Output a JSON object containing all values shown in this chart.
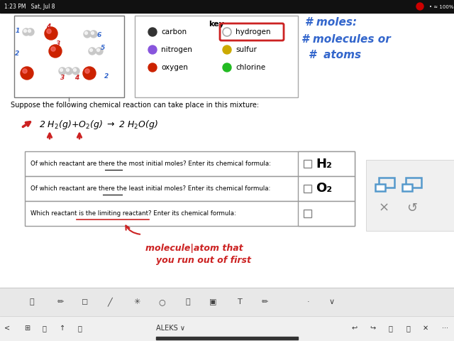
{
  "bg_color": "#ffffff",
  "status_bar_bg": "#111111",
  "status_time": "1:23 PM   Sat, Jul 8",
  "status_right": "•≈ 100%",
  "key_title": "key",
  "key_data": [
    {
      "label": "carbon",
      "color": "#333333",
      "filled": true,
      "col": 0
    },
    {
      "label": "hydrogen",
      "color": "#d0d0d0",
      "filled": false,
      "col": 1,
      "boxed": true
    },
    {
      "label": "nitrogen",
      "color": "#8855dd",
      "filled": true,
      "col": 0
    },
    {
      "label": "sulfur",
      "color": "#ccaa00",
      "filled": true,
      "col": 1
    },
    {
      "label": "oxygen",
      "color": "#cc2200",
      "filled": true,
      "col": 0
    },
    {
      "label": "chlorine",
      "color": "#22bb22",
      "filled": true,
      "col": 1
    }
  ],
  "suppose_text": "Suppose the following chemical reaction can take place in this mixture:",
  "table_rows": [
    "Of which reactant are there the most initial moles? Enter its chemical formula:",
    "Of which reactant are there the least initial moles? Enter its chemical formula:",
    "Which reactant is the limiting reactant? Enter its chemical formula:"
  ],
  "table_answers": [
    "H₂",
    "O₂",
    ""
  ],
  "red_color": "#cc2222",
  "blue_color": "#3366cc",
  "toolbar_bg": "#e8e8e8",
  "nav_bg": "#f0f0f0"
}
